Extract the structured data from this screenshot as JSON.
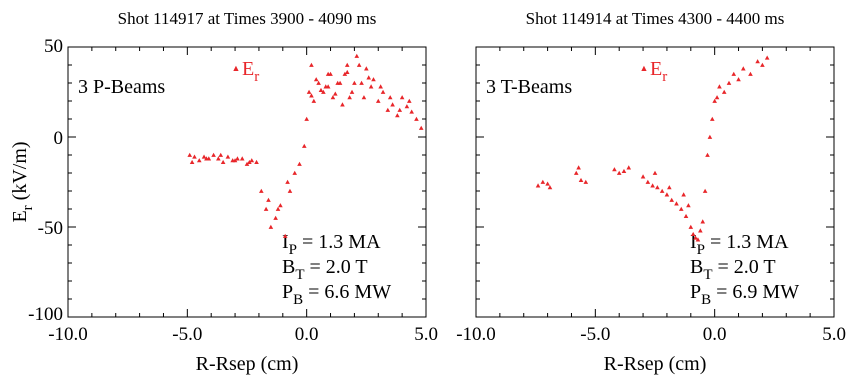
{
  "chart_data": [
    {
      "type": "scatter",
      "title": "Shot 114917 at Times 3900 - 4090 ms",
      "xlabel": "R-Rsep (cm)",
      "ylabel": "E",
      "ylabel_sub": "r",
      "ylabel_unit": " (kV/m)",
      "xlim": [
        -10.0,
        5.0
      ],
      "ylim": [
        -100,
        50
      ],
      "xticks": [
        -10.0,
        -5.0,
        0.0,
        5.0
      ],
      "xtick_labels": [
        "-10.0",
        "-5.0",
        "0.0",
        "5.0"
      ],
      "yticks": [
        -100,
        -50,
        0,
        50
      ],
      "ytick_labels": [
        "-100",
        "-50",
        "0",
        "50"
      ],
      "grid": false,
      "beam_label": "3 P-Beams",
      "legend": {
        "symbol": "▲",
        "name": "E",
        "sub": "r",
        "placement": "top-left"
      },
      "params": [
        {
          "main": "I",
          "sub": "P",
          "rest": " = 1.3 MA"
        },
        {
          "main": "B",
          "sub": "T",
          "rest": " = 2.0 T"
        },
        {
          "main": "P",
          "sub": "B",
          "rest": " = 6.6 MW"
        }
      ],
      "color": "#e8262a",
      "series": [
        {
          "x": [
            -4.9,
            -4.7,
            -4.5,
            -4.3,
            -4.1,
            -3.9,
            -3.7,
            -3.5,
            -3.3,
            -3.1,
            -2.9,
            -2.7,
            -2.5,
            -2.3,
            -2.1,
            -4.8,
            -4.2,
            -3.6,
            -3.0,
            -2.4,
            -1.9,
            -1.7,
            -1.5,
            -1.3,
            -1.1,
            -0.9,
            -0.7,
            -1.6,
            -1.2,
            -0.8,
            -0.5,
            -0.3,
            -0.1,
            0.0,
            0.1,
            0.2,
            0.3,
            0.5,
            0.7,
            0.9,
            1.1,
            1.3,
            1.5,
            1.7,
            1.9,
            2.1,
            2.3,
            2.5,
            2.7,
            0.4,
            0.8,
            1.2,
            1.6,
            2.0,
            2.4,
            2.8,
            3.0,
            3.2,
            3.4,
            3.6,
            3.8,
            4.0,
            4.2,
            4.4,
            4.6,
            4.8,
            3.1,
            3.5,
            3.9,
            4.3,
            0.6,
            1.0,
            1.4,
            1.8,
            2.2,
            2.6,
            0.2,
            0.9,
            1.7
          ],
          "y": [
            -10,
            -11,
            -13,
            -11,
            -12,
            -10,
            -12,
            -14,
            -11,
            -13,
            -12,
            -12,
            -15,
            -13,
            -14,
            -14,
            -12,
            -10,
            -13,
            -14,
            -30,
            -40,
            -50,
            -45,
            -38,
            -55,
            -30,
            -35,
            -40,
            -25,
            -20,
            -15,
            -5,
            10,
            25,
            40,
            20,
            30,
            25,
            35,
            22,
            30,
            18,
            40,
            25,
            45,
            30,
            38,
            28,
            32,
            28,
            24,
            35,
            30,
            22,
            32,
            20,
            25,
            15,
            18,
            12,
            22,
            17,
            14,
            10,
            5,
            28,
            22,
            15,
            20,
            26,
            35,
            30,
            22,
            40,
            33,
            23,
            28,
            36
          ]
        }
      ]
    },
    {
      "type": "scatter",
      "title": "Shot 114914 at Times 4300 - 4400 ms",
      "xlabel": "R-Rsep (cm)",
      "xlim": [
        -10.0,
        5.0
      ],
      "ylim": [
        -100,
        50
      ],
      "xticks": [
        -10.0,
        -5.0,
        0.0,
        5.0
      ],
      "xtick_labels": [
        "-10.0",
        "-5.0",
        "0.0",
        "5.0"
      ],
      "yticks": [
        -100,
        -50,
        0,
        50
      ],
      "grid": false,
      "beam_label": "3 T-Beams",
      "legend": {
        "symbol": "▲",
        "name": "E",
        "sub": "r",
        "placement": "top-left"
      },
      "params": [
        {
          "main": "I",
          "sub": "P",
          "rest": " = 1.3 MA"
        },
        {
          "main": "B",
          "sub": "T",
          "rest": " = 2.0 T"
        },
        {
          "main": "P",
          "sub": "B",
          "rest": " = 6.9 MW"
        }
      ],
      "color": "#e8262a",
      "series": [
        {
          "x": [
            -7.4,
            -7.2,
            -7.0,
            -6.9,
            -5.8,
            -5.6,
            -5.4,
            -5.7,
            -4.2,
            -4.0,
            -3.8,
            -3.6,
            -3.0,
            -2.8,
            -2.6,
            -2.4,
            -2.2,
            -2.0,
            -1.8,
            -1.6,
            -1.4,
            -1.2,
            -1.0,
            -0.9,
            -0.8,
            -0.7,
            -0.6,
            -0.5,
            -2.5,
            -1.9,
            -1.3,
            -1.1,
            -0.4,
            -0.3,
            -0.2,
            -0.1,
            0.0,
            0.1,
            0.2,
            0.4,
            0.6,
            0.8,
            1.0,
            1.2,
            1.5,
            1.8,
            2.0,
            2.2
          ],
          "y": [
            -27,
            -25,
            -26,
            -28,
            -20,
            -24,
            -25,
            -17,
            -18,
            -20,
            -19,
            -17,
            -22,
            -25,
            -27,
            -28,
            -30,
            -32,
            -35,
            -37,
            -40,
            -44,
            -50,
            -54,
            -56,
            -57,
            -52,
            -47,
            -20,
            -28,
            -32,
            -38,
            -30,
            -10,
            0,
            10,
            20,
            22,
            28,
            25,
            30,
            35,
            32,
            38,
            35,
            42,
            40,
            44
          ]
        }
      ]
    }
  ]
}
